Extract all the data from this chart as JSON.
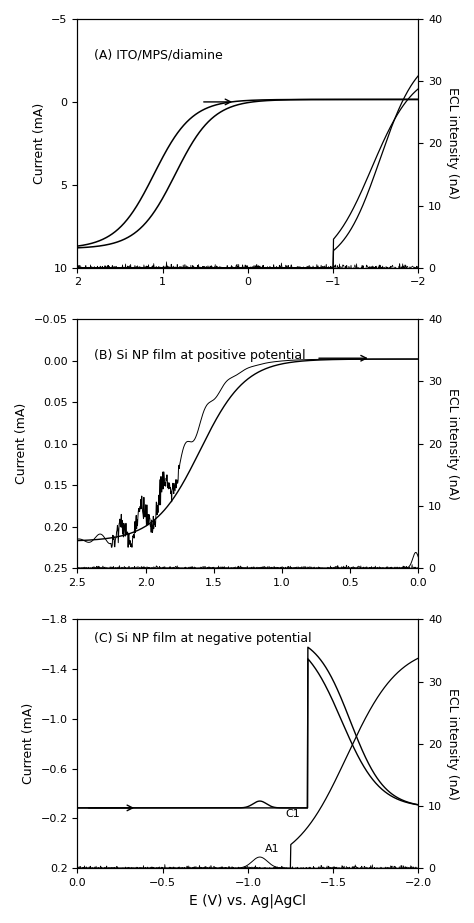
{
  "panel_A": {
    "title": "(A) ITO/MPS/diamine",
    "xlim": [
      2.0,
      -2.0
    ],
    "ylim_left": [
      10,
      -5
    ],
    "ylim_right": [
      0,
      40
    ],
    "yticks_left": [
      10,
      5,
      0,
      -5
    ],
    "yticks_right": [
      0,
      10,
      20,
      30,
      40
    ],
    "xticks": [
      2,
      1,
      0,
      -1,
      -2
    ],
    "ylabel_left": "Current (mA)",
    "ylabel_right": "ECL intensity (nA)"
  },
  "panel_B": {
    "title": "(B) Si NP film at positive potential",
    "xlim": [
      2.5,
      0.0
    ],
    "ylim_left": [
      0.25,
      -0.05
    ],
    "ylim_right": [
      0,
      40
    ],
    "yticks_left": [
      0.25,
      0.2,
      0.15,
      0.1,
      0.05,
      0.0,
      -0.05
    ],
    "yticks_right": [
      0,
      10,
      20,
      30,
      40
    ],
    "xticks": [
      2.5,
      2.0,
      1.5,
      1.0,
      0.5,
      0.0
    ],
    "ylabel_left": "Current (mA)",
    "ylabel_right": "ECL intensity (nA)"
  },
  "panel_C": {
    "title": "(C) Si NP film at negative potential",
    "xlim": [
      0.0,
      -2.0
    ],
    "ylim_left": [
      0.2,
      -1.8
    ],
    "ylim_right": [
      0,
      40
    ],
    "yticks_left": [
      0.2,
      -0.2,
      -0.6,
      -1.0,
      -1.4,
      -1.8
    ],
    "yticks_right": [
      0,
      10,
      20,
      30,
      40
    ],
    "xticks": [
      0,
      -0.5,
      -1.0,
      -1.5,
      -2.0
    ],
    "ylabel_left": "Current (mA)",
    "ylabel_right": "ECL intensity (nA)"
  },
  "xlabel": "E (V) vs. Ag|AgCl",
  "bg_color": "#ffffff"
}
